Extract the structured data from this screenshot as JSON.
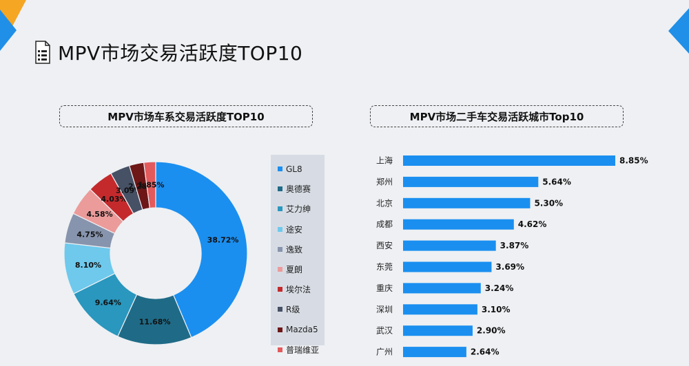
{
  "page": {
    "title": "MPV市场交易活跃度TOP10",
    "colors": {
      "accent_orange": "#f5a623",
      "accent_blue": "#1f8fe8",
      "background": "#eef0f3"
    }
  },
  "left_panel": {
    "title": "MPV市场车系交易活跃度TOP10"
  },
  "right_panel": {
    "title": "MPV市场二手车交易活跃城市Top10"
  },
  "chart_data": [
    {
      "type": "pie",
      "variant": "donut",
      "title": "MPV市场车系交易活跃度TOP10",
      "legend_position": "right",
      "categories": [
        "GL8",
        "奥德赛",
        "艾力绅",
        "途安",
        "逸致",
        "夏朗",
        "埃尔法",
        "R级",
        "Mazda5",
        "普瑞维亚"
      ],
      "values": [
        38.72,
        11.68,
        9.64,
        8.1,
        4.75,
        4.58,
        4.03,
        3.09,
        2.28,
        1.85
      ],
      "labels": [
        "38.72%",
        "11.68%",
        "9.64%",
        "8.10%",
        "4.75%",
        "4.58%",
        "4.03%",
        "3.09%",
        "2.28%",
        "1.85%"
      ],
      "colors": [
        "#1a8ff0",
        "#1f6b87",
        "#2a97be",
        "#6ec9ec",
        "#8794ad",
        "#eb9b9a",
        "#c42a2c",
        "#465165",
        "#6d1717",
        "#e35a5c"
      ]
    },
    {
      "type": "bar",
      "orientation": "horizontal",
      "title": "MPV市场二手车交易活跃城市Top10",
      "categories": [
        "上海",
        "郑州",
        "北京",
        "成都",
        "西安",
        "东莞",
        "重庆",
        "深圳",
        "武汉",
        "广州"
      ],
      "values": [
        8.85,
        5.64,
        5.3,
        4.62,
        3.87,
        3.69,
        3.24,
        3.1,
        2.9,
        2.64
      ],
      "labels": [
        "8.85%",
        "5.64%",
        "5.30%",
        "4.62%",
        "3.87%",
        "3.69%",
        "3.24%",
        "3.10%",
        "2.90%",
        "2.64%"
      ],
      "color": "#1a8ff0",
      "xlim": [
        0,
        10
      ],
      "grid": false
    }
  ]
}
